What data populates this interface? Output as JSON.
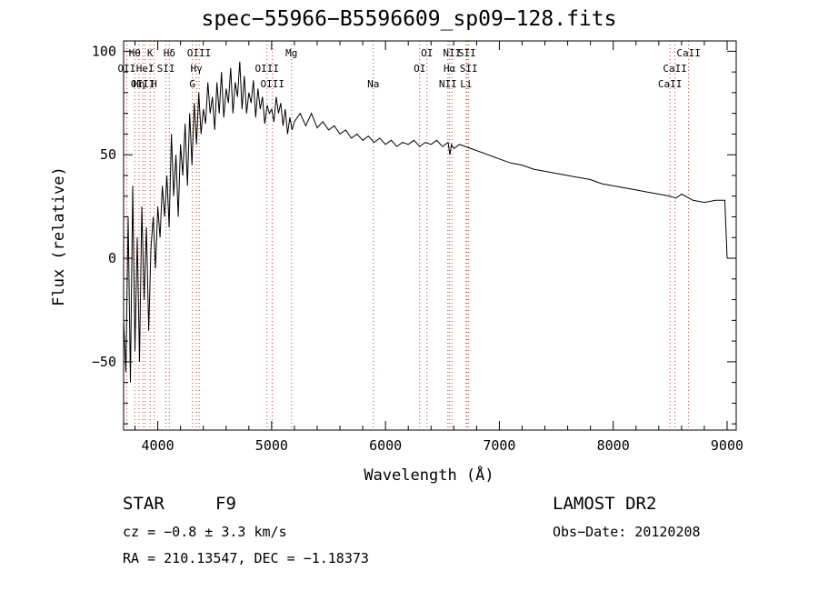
{
  "footer": {
    "object_class": "STAR",
    "subclass": "F9",
    "survey": "LAMOST DR2",
    "cz": "cz = −0.8 ± 3.3 km/s",
    "obs_date": "Obs−Date: 20120208",
    "coords": "RA = 210.13547, DEC =  −1.18373"
  },
  "chart_data": {
    "type": "line",
    "title": "spec−55966−B5596609_sp09−128.fits",
    "xlabel": "Wavelength (Å)",
    "ylabel": "Flux (relative)",
    "xlim": [
      3700,
      9080
    ],
    "ylim": [
      -83,
      105
    ],
    "xticks": [
      4000,
      5000,
      6000,
      7000,
      8000,
      9000
    ],
    "xtick_labels": [
      "4000",
      "5000",
      "6000",
      "7000",
      "8000",
      "9000"
    ],
    "yticks": [
      -50,
      0,
      50,
      100
    ],
    "ytick_labels": [
      "−50",
      "0",
      "50",
      "100"
    ],
    "grid": false,
    "legend": "none",
    "series": [
      {
        "x": [
          3700,
          3720,
          3740,
          3760,
          3780,
          3800,
          3820,
          3840,
          3860,
          3880,
          3900,
          3920,
          3940,
          3960,
          3980,
          4000,
          4020,
          4040,
          4060,
          4080,
          4100,
          4120,
          4140,
          4160,
          4180,
          4200,
          4220,
          4240,
          4260,
          4280,
          4300,
          4320,
          4340,
          4360,
          4380,
          4400,
          4420,
          4440,
          4460,
          4480,
          4500,
          4520,
          4540,
          4560,
          4580,
          4600,
          4620,
          4640,
          4660,
          4680,
          4700,
          4720,
          4740,
          4760,
          4780,
          4800,
          4820,
          4840,
          4860,
          4880,
          4900,
          4920,
          4940,
          4960,
          4980,
          5000,
          5020,
          5040,
          5060,
          5080,
          5100,
          5120,
          5140,
          5160,
          5180,
          5200,
          5250,
          5300,
          5350,
          5400,
          5450,
          5500,
          5550,
          5600,
          5650,
          5700,
          5750,
          5800,
          5850,
          5900,
          5950,
          6000,
          6050,
          6100,
          6150,
          6200,
          6250,
          6300,
          6350,
          6400,
          6450,
          6500,
          6550,
          6565,
          6580,
          6600,
          6650,
          6700,
          6750,
          6800,
          6850,
          6900,
          6950,
          7000,
          7100,
          7200,
          7300,
          7400,
          7500,
          7600,
          7700,
          7800,
          7900,
          8000,
          8100,
          8200,
          8300,
          8400,
          8500,
          8550,
          8600,
          8700,
          8800,
          8900,
          8980,
          9000
        ],
        "y": [
          -30,
          -55,
          20,
          -60,
          35,
          -45,
          10,
          -50,
          25,
          -20,
          15,
          -35,
          5,
          20,
          -5,
          25,
          10,
          35,
          20,
          40,
          15,
          60,
          30,
          50,
          20,
          55,
          40,
          65,
          35,
          70,
          45,
          75,
          55,
          80,
          60,
          72,
          65,
          85,
          70,
          78,
          62,
          85,
          70,
          90,
          68,
          82,
          75,
          92,
          70,
          85,
          78,
          95,
          72,
          88,
          70,
          80,
          75,
          86,
          68,
          82,
          72,
          78,
          65,
          74,
          70,
          72,
          66,
          78,
          70,
          75,
          64,
          72,
          60,
          68,
          62,
          66,
          70,
          64,
          70,
          63,
          66,
          62,
          64,
          60,
          62,
          58,
          60,
          57,
          59,
          56,
          58,
          55,
          57,
          54,
          56,
          55,
          57,
          54,
          56,
          55,
          57,
          54,
          56,
          50,
          55,
          53,
          55,
          54,
          53,
          52,
          51,
          50,
          49,
          48,
          46,
          45,
          43,
          42,
          41,
          40,
          39,
          38,
          36,
          35,
          34,
          33,
          32,
          31,
          30,
          29,
          31,
          28,
          27,
          28,
          28,
          0
        ]
      }
    ],
    "lines": [
      {
        "label": "Hθ",
        "wavelength": 3798,
        "color": "#c0392b",
        "row": 1
      },
      {
        "label": "K",
        "wavelength": 3933,
        "color": "#c0392b",
        "row": 1
      },
      {
        "label": "Hδ",
        "wavelength": 4102,
        "color": "#c0392b",
        "row": 1
      },
      {
        "label": "OIII",
        "wavelength": 4363,
        "color": "#c0392b",
        "row": 1
      },
      {
        "label": "Mg",
        "wavelength": 5175,
        "color": "#c0392b",
        "row": 1
      },
      {
        "label": "OI",
        "wavelength": 6364,
        "color": "#c0392b",
        "row": 1
      },
      {
        "label": "NII",
        "wavelength": 6584,
        "color": "#c0392b",
        "row": 1
      },
      {
        "label": "SII",
        "wavelength": 6716,
        "color": "#c0392b",
        "row": 1
      },
      {
        "label": "CaII",
        "wavelength": 8662,
        "color": "#c0392b",
        "row": 1
      },
      {
        "label": "OII",
        "wavelength": 3727,
        "color": "#c0392b",
        "row": 2
      },
      {
        "label": "HeI",
        "wavelength": 3889,
        "color": "#c0392b",
        "row": 2
      },
      {
        "label": "SII",
        "wavelength": 4072,
        "color": "#c0392b",
        "row": 2
      },
      {
        "label": "Hγ",
        "wavelength": 4340,
        "color": "#c0392b",
        "row": 2
      },
      {
        "label": "OIII",
        "wavelength": 4959,
        "color": "#c0392b",
        "row": 2
      },
      {
        "label": "OI",
        "wavelength": 6300,
        "color": "#c0392b",
        "row": 2
      },
      {
        "label": "Hα",
        "wavelength": 6563,
        "color": "#c0392b",
        "row": 2
      },
      {
        "label": "SII",
        "wavelength": 6731,
        "color": "#c0392b",
        "row": 2
      },
      {
        "label": "CaII",
        "wavelength": 8542,
        "color": "#c0392b",
        "row": 2
      },
      {
        "label": "OIII",
        "wavelength": 3869,
        "color": "#c0392b",
        "row": 3
      },
      {
        "label": "Hη",
        "wavelength": 3835,
        "color": "#c0392b",
        "row": 3
      },
      {
        "label": "H",
        "wavelength": 3968,
        "color": "#c0392b",
        "row": 3
      },
      {
        "label": "G",
        "wavelength": 4304,
        "color": "#c0392b",
        "row": 3
      },
      {
        "label": "OIII",
        "wavelength": 5007,
        "color": "#c0392b",
        "row": 3
      },
      {
        "label": "Na",
        "wavelength": 5893,
        "color": "#c0392b",
        "row": 3
      },
      {
        "label": "NII",
        "wavelength": 6548,
        "color": "#c0392b",
        "row": 3
      },
      {
        "label": "Li",
        "wavelength": 6708,
        "color": "#c0392b",
        "row": 3
      },
      {
        "label": "CaII",
        "wavelength": 8498,
        "color": "#c0392b",
        "row": 3
      }
    ]
  }
}
